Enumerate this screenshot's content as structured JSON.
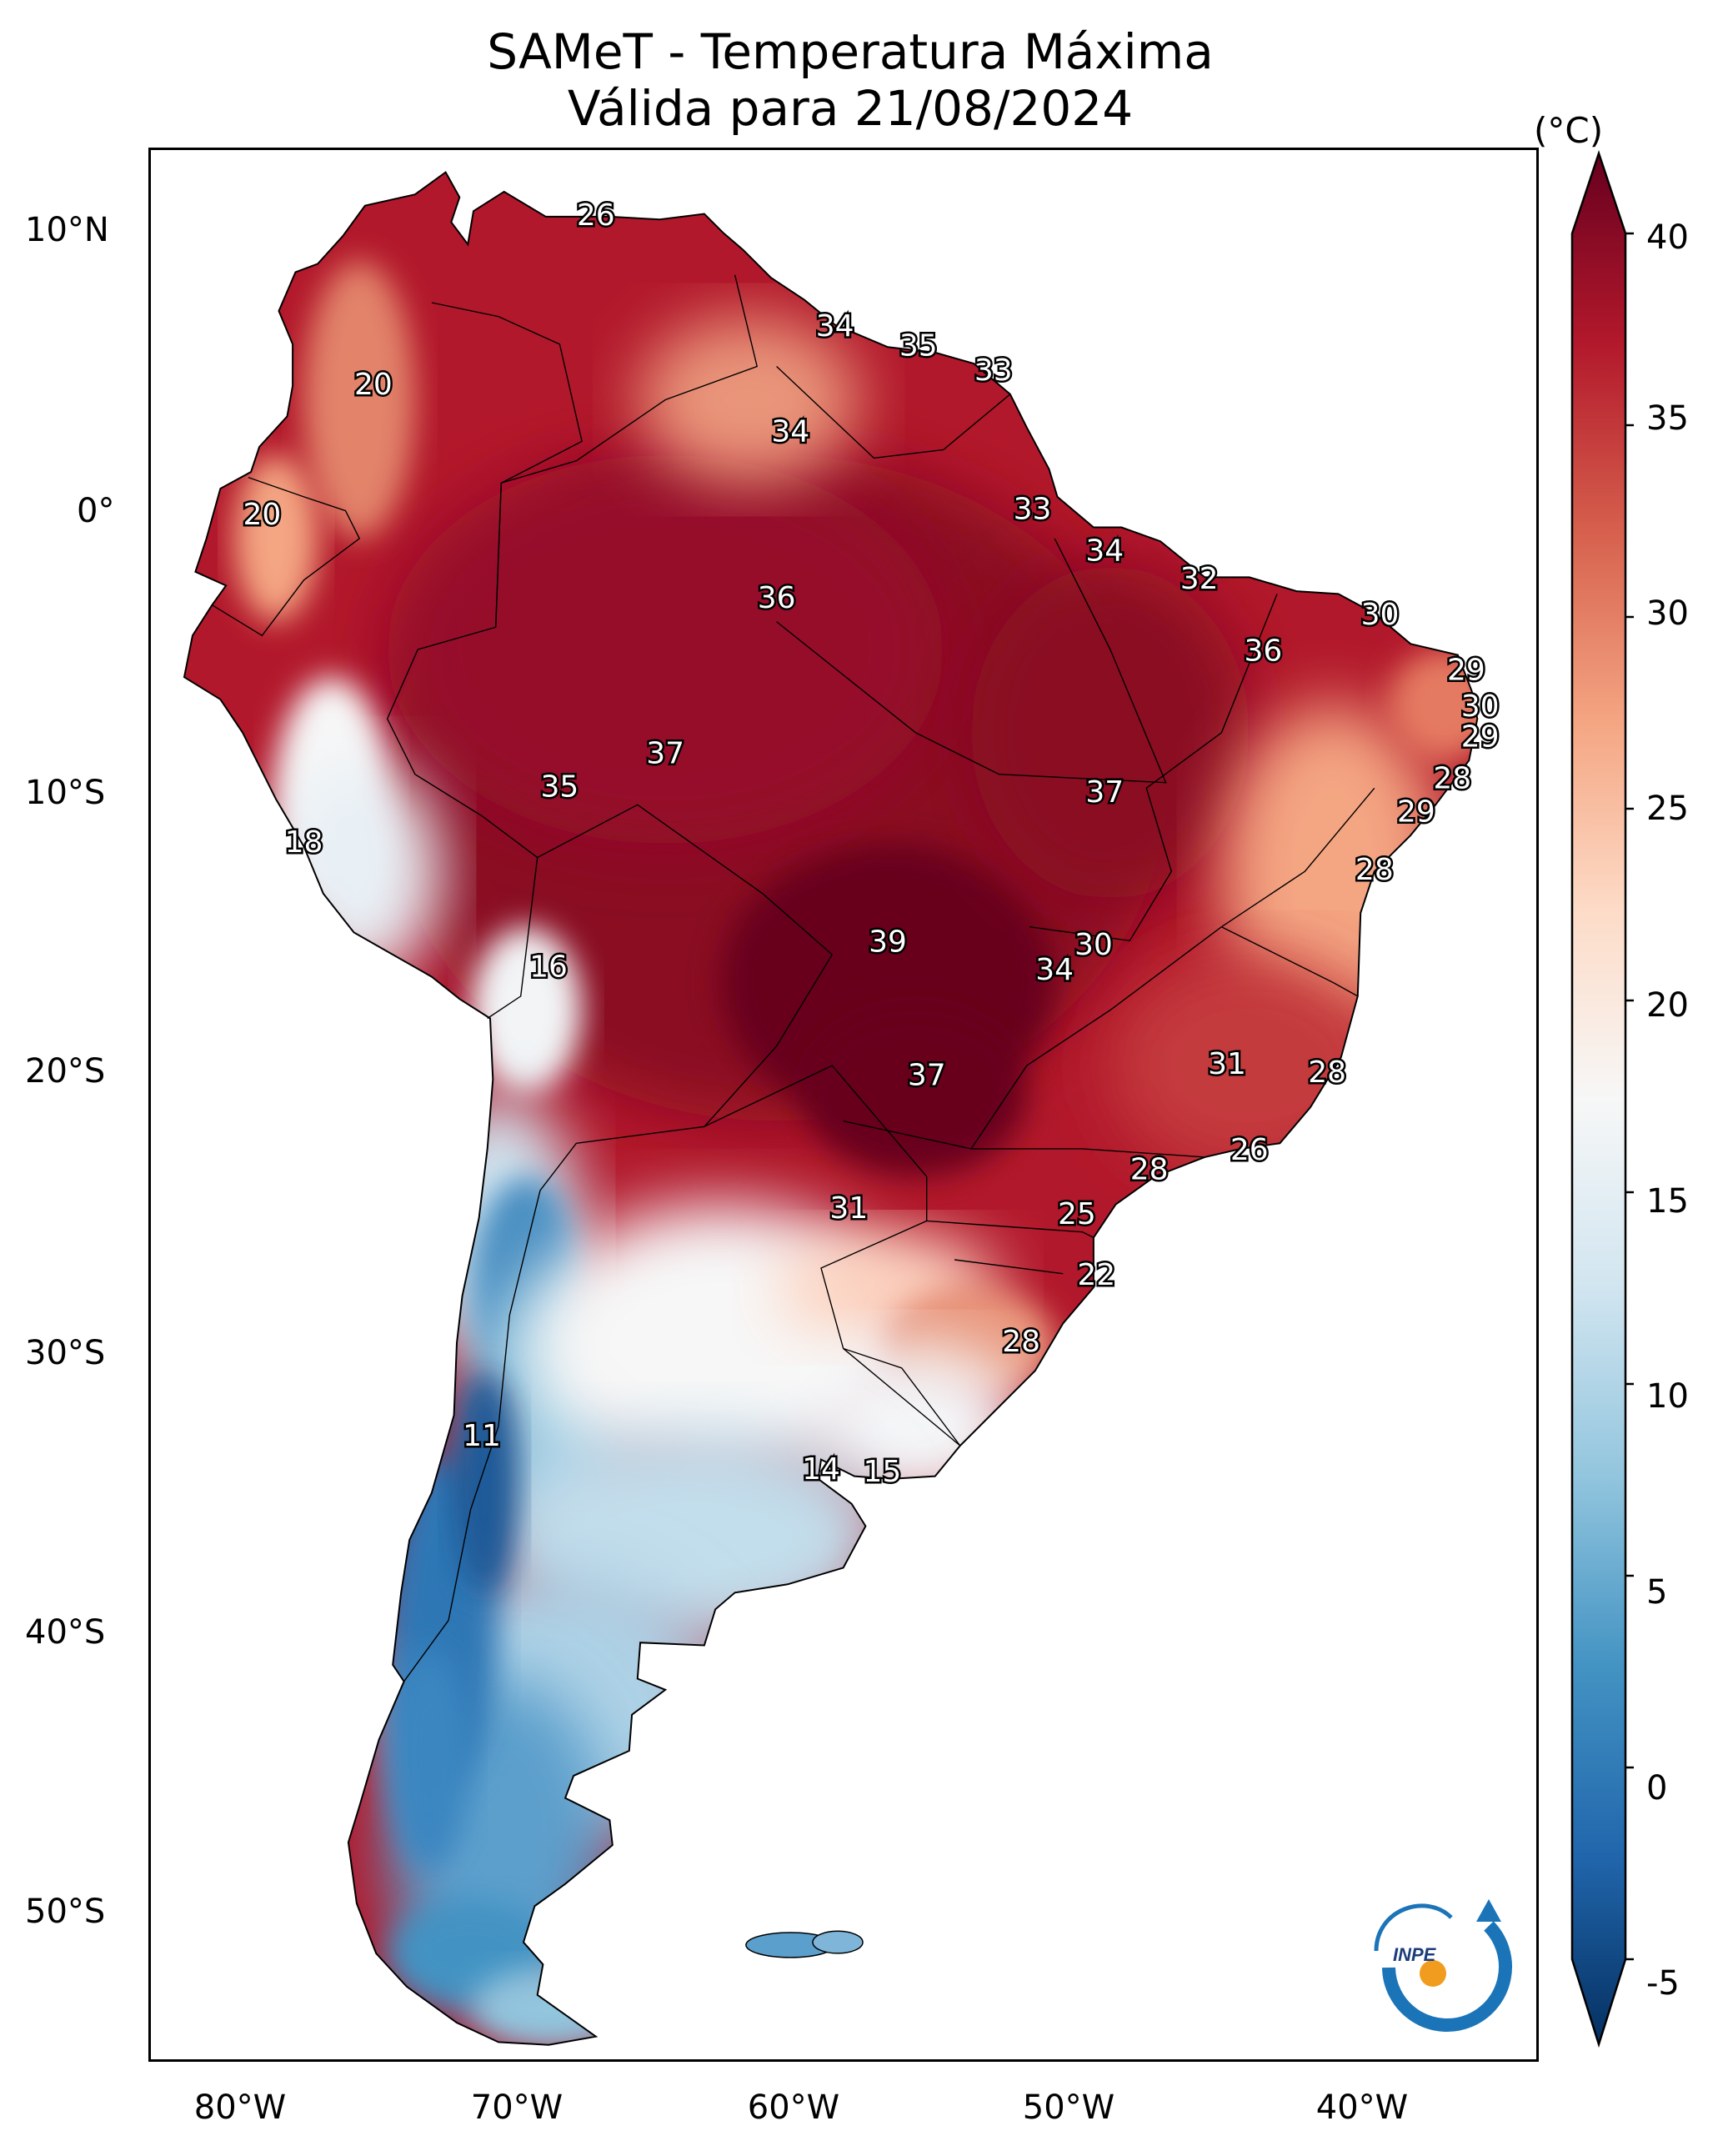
{
  "title": {
    "line1": "SAMeT - Temperatura Máxima",
    "line2": "Válida para 21/08/2024"
  },
  "map": {
    "lon_ticks": [
      "80°W",
      "70°W",
      "60°W",
      "50°W",
      "40°W"
    ],
    "lat_ticks": [
      "10°N",
      "0°",
      "10°S",
      "20°S",
      "30°S",
      "40°S",
      "50°S"
    ],
    "extent": {
      "lon_min": -82.5,
      "lon_max": -32.5,
      "lat_min": -56.0,
      "lat_max": 13.0
    }
  },
  "colorbar": {
    "unit": "(°C)",
    "ticks": [
      "40",
      "35",
      "30",
      "25",
      "20",
      "15",
      "10",
      "5",
      "0",
      "-5"
    ],
    "range": [
      -5,
      40
    ],
    "colors": [
      "#053061",
      "#2166ac",
      "#4393c3",
      "#92c5de",
      "#d1e5f0",
      "#f7f7f7",
      "#fddbc7",
      "#f4a582",
      "#d6604d",
      "#b2182b",
      "#67001f"
    ]
  },
  "station_labels": [
    {
      "value": "26",
      "lon": -66.5,
      "lat": 10.6
    },
    {
      "value": "20",
      "lon": -74.5,
      "lat": 4.5
    },
    {
      "value": "34",
      "lon": -57.9,
      "lat": 6.6
    },
    {
      "value": "35",
      "lon": -54.9,
      "lat": 5.9
    },
    {
      "value": "33",
      "lon": -52.2,
      "lat": 5.0
    },
    {
      "value": "34",
      "lon": -59.5,
      "lat": 2.8
    },
    {
      "value": "20",
      "lon": -78.5,
      "lat": -0.2
    },
    {
      "value": "33",
      "lon": -50.8,
      "lat": 0.0
    },
    {
      "value": "34",
      "lon": -48.2,
      "lat": -1.5
    },
    {
      "value": "32",
      "lon": -44.8,
      "lat": -2.5
    },
    {
      "value": "36",
      "lon": -60.0,
      "lat": -3.2
    },
    {
      "value": "30",
      "lon": -38.3,
      "lat": -3.8
    },
    {
      "value": "36",
      "lon": -42.5,
      "lat": -5.1
    },
    {
      "value": "29",
      "lon": -35.2,
      "lat": -5.8
    },
    {
      "value": "30",
      "lon": -34.7,
      "lat": -7.1
    },
    {
      "value": "29",
      "lon": -34.7,
      "lat": -8.2
    },
    {
      "value": "37",
      "lon": -64.0,
      "lat": -8.8
    },
    {
      "value": "28",
      "lon": -35.7,
      "lat": -9.7
    },
    {
      "value": "35",
      "lon": -67.8,
      "lat": -10.0
    },
    {
      "value": "37",
      "lon": -48.2,
      "lat": -10.2
    },
    {
      "value": "29",
      "lon": -37.0,
      "lat": -10.9
    },
    {
      "value": "18",
      "lon": -77.0,
      "lat": -12.0
    },
    {
      "value": "28",
      "lon": -38.5,
      "lat": -13.0
    },
    {
      "value": "39",
      "lon": -56.0,
      "lat": -15.6
    },
    {
      "value": "30",
      "lon": -48.6,
      "lat": -15.7
    },
    {
      "value": "16",
      "lon": -68.2,
      "lat": -16.5
    },
    {
      "value": "34",
      "lon": -50.0,
      "lat": -16.6
    },
    {
      "value": "31",
      "lon": -43.8,
      "lat": -20.0
    },
    {
      "value": "28",
      "lon": -40.2,
      "lat": -20.3
    },
    {
      "value": "37",
      "lon": -54.6,
      "lat": -20.4
    },
    {
      "value": "26",
      "lon": -43.0,
      "lat": -23.1
    },
    {
      "value": "28",
      "lon": -46.6,
      "lat": -23.8
    },
    {
      "value": "25",
      "lon": -49.2,
      "lat": -25.4
    },
    {
      "value": "31",
      "lon": -57.4,
      "lat": -25.2
    },
    {
      "value": "22",
      "lon": -48.5,
      "lat": -27.6
    },
    {
      "value": "28",
      "lon": -51.2,
      "lat": -30.0
    },
    {
      "value": "11",
      "lon": -70.6,
      "lat": -33.4
    },
    {
      "value": "14",
      "lon": -58.4,
      "lat": -34.6
    },
    {
      "value": "15",
      "lon": -56.2,
      "lat": -34.7
    }
  ],
  "logo": {
    "text": "INPE"
  }
}
